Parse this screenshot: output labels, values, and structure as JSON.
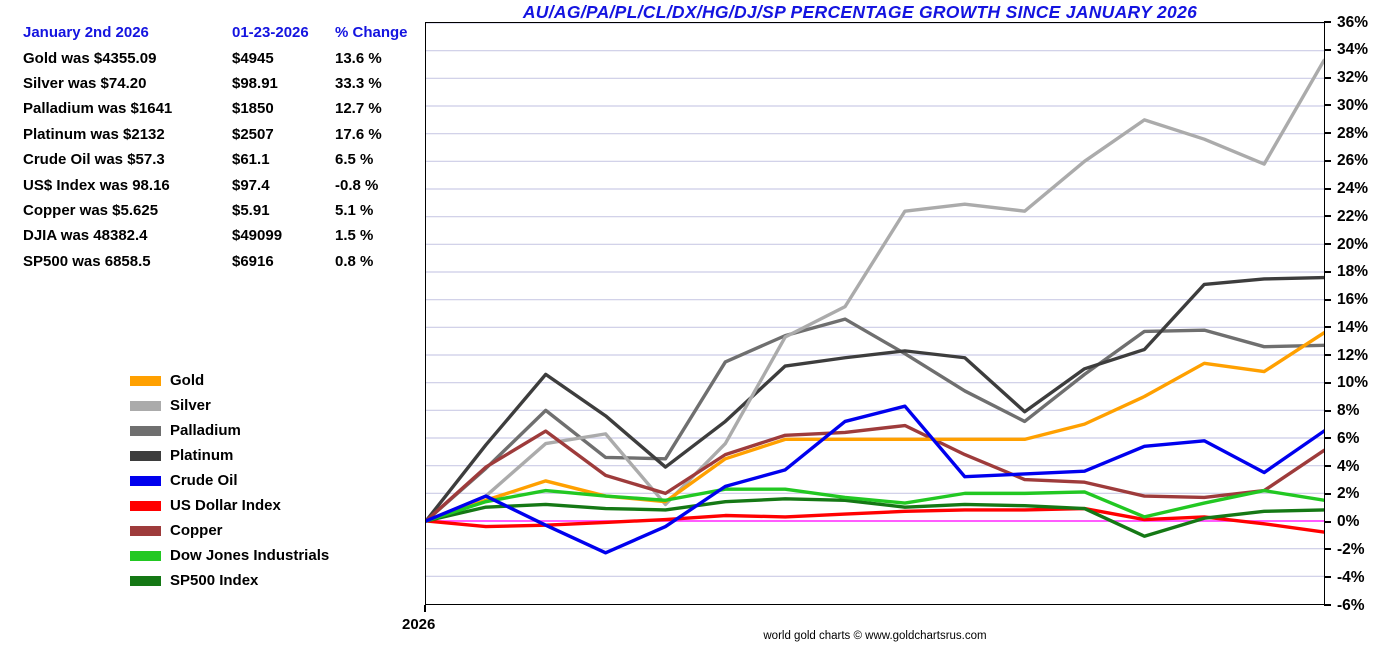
{
  "title": "AU/AG/PA/PL/CL/DX/HG/DJ/SP PERCENTAGE GROWTH SINCE JANUARY 2026",
  "colors": {
    "title_blue": "#1414e0",
    "gridline": "#ccccE6",
    "zero_line": "#ff44ff",
    "axis": "#000000"
  },
  "summary_table": {
    "headers": [
      "January 2nd 2026",
      "01-23-2026",
      "% Change"
    ],
    "rows": [
      {
        "name": "Gold",
        "start": "Gold was $4355.09",
        "current": "$4945",
        "change": "13.6 %"
      },
      {
        "name": "Silver",
        "start": "Silver was $74.20",
        "current": "$98.91",
        "change": "33.3 %"
      },
      {
        "name": "Palladium",
        "start": "Palladium was $1641",
        "current": "$1850",
        "change": "12.7 %"
      },
      {
        "name": "Platinum",
        "start": "Platinum was $2132",
        "current": "$2507",
        "change": "17.6 %"
      },
      {
        "name": "CrudeOil",
        "start": "Crude Oil was $57.3",
        "current": "$61.1",
        "change": "6.5 %"
      },
      {
        "name": "USIndex",
        "start": "US$ Index was 98.16",
        "current": "$97.4",
        "change": "-0.8 %"
      },
      {
        "name": "Copper",
        "start": "Copper was $5.625",
        "current": "$5.91",
        "change": "5.1 %"
      },
      {
        "name": "DJIA",
        "start": "DJIA was 48382.4",
        "current": "$49099",
        "change": "1.5 %"
      },
      {
        "name": "SP500",
        "start": "SP500 was 6858.5",
        "current": "$6916",
        "change": "0.8 %"
      }
    ]
  },
  "x_axis_label": "2026",
  "credit": "world gold charts © www.goldchartsrus.com",
  "chart_data": {
    "type": "line",
    "title": "AU/AG/PA/PL/CL/DX/HG/DJ/SP PERCENTAGE GROWTH SINCE JANUARY 2026",
    "x_description": "Trading days Jan 2 2026 - Jan 23 2026, 16 points, only year label shown",
    "ylim": [
      -6,
      36
    ],
    "ytick_step": 2,
    "ytick_suffix": "%",
    "grid": true,
    "legend_position": "left-middle",
    "series": [
      {
        "name": "Gold",
        "color": "#ffa000",
        "values": [
          0,
          1.5,
          2.9,
          1.8,
          1.4,
          4.5,
          5.9,
          5.9,
          5.9,
          5.9,
          5.9,
          7.0,
          9.0,
          11.4,
          10.8,
          13.6
        ]
      },
      {
        "name": "Silver",
        "color": "#ababab",
        "values": [
          0,
          1.8,
          5.6,
          6.3,
          1.2,
          5.6,
          13.3,
          15.5,
          22.4,
          22.9,
          22.4,
          26.0,
          29.0,
          27.6,
          25.8,
          33.3
        ]
      },
      {
        "name": "Palladium",
        "color": "#6f6f6f",
        "values": [
          0,
          3.8,
          8.0,
          4.6,
          4.5,
          11.5,
          13.4,
          14.6,
          12.1,
          9.4,
          7.2,
          10.6,
          13.7,
          13.8,
          12.6,
          12.7
        ]
      },
      {
        "name": "Platinum",
        "color": "#3d3d3d",
        "values": [
          0,
          5.5,
          10.6,
          7.6,
          3.9,
          7.2,
          11.2,
          11.8,
          12.3,
          11.8,
          7.9,
          11.0,
          12.4,
          17.1,
          17.5,
          17.6
        ]
      },
      {
        "name": "Crude Oil",
        "color": "#0000ee",
        "values": [
          0,
          1.8,
          -0.3,
          -2.3,
          -0.4,
          2.5,
          3.7,
          7.2,
          8.3,
          3.2,
          3.4,
          3.6,
          5.4,
          5.8,
          3.5,
          6.5
        ]
      },
      {
        "name": "US Dollar Index",
        "color": "#ff0000",
        "values": [
          0,
          -0.4,
          -0.3,
          -0.1,
          0.1,
          0.4,
          0.3,
          0.5,
          0.7,
          0.8,
          0.8,
          0.9,
          0.1,
          0.3,
          -0.2,
          -0.8
        ]
      },
      {
        "name": "Copper",
        "color": "#9e3b3b",
        "values": [
          0,
          3.9,
          6.5,
          3.3,
          2.0,
          4.8,
          6.2,
          6.4,
          6.9,
          4.8,
          3.0,
          2.8,
          1.8,
          1.7,
          2.2,
          5.1
        ]
      },
      {
        "name": "Dow Jones Industrials",
        "color": "#22c822",
        "values": [
          0,
          1.4,
          2.2,
          1.8,
          1.5,
          2.3,
          2.3,
          1.7,
          1.3,
          2.0,
          2.0,
          2.1,
          0.3,
          1.3,
          2.2,
          1.5
        ]
      },
      {
        "name": "SP500 Index",
        "color": "#157815",
        "values": [
          0,
          1.0,
          1.2,
          0.9,
          0.8,
          1.4,
          1.6,
          1.5,
          1.0,
          1.2,
          1.1,
          0.9,
          -1.1,
          0.2,
          0.7,
          0.8
        ]
      }
    ],
    "draw_order": [
      2,
      3,
      1,
      6,
      0,
      5,
      8,
      7,
      4
    ]
  }
}
